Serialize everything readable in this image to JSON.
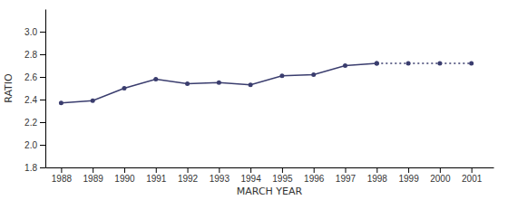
{
  "chart_data": {
    "type": "line",
    "xlabel": "MARCH YEAR",
    "ylabel": "RATIO",
    "series": [
      {
        "x": [
          1988,
          1989,
          1990,
          1991,
          1992,
          1993,
          1994,
          1995,
          1996,
          1997,
          1998
        ],
        "values": [
          2.37,
          2.39,
          2.5,
          2.58,
          2.54,
          2.55,
          2.53,
          2.61,
          2.62,
          2.7,
          2.72
        ],
        "color": "#3a3d6e",
        "line_style": "solid",
        "marker": "circle"
      },
      {
        "x": [
          1998,
          1999,
          2000,
          2001
        ],
        "values": [
          2.72,
          2.72,
          2.72,
          2.72
        ],
        "color": "#3a3d6e",
        "line_style": "dotted",
        "marker": "circle"
      }
    ],
    "xlim": [
      1987.5,
      2001.7
    ],
    "ylim": [
      1.8,
      3.2
    ],
    "xticks": [
      1988,
      1989,
      1990,
      1991,
      1992,
      1993,
      1994,
      1995,
      1996,
      1997,
      1998,
      1999,
      2000,
      2001
    ],
    "yticks": [
      1.8,
      {
        "value": 2.0,
        "label": "2.0"
      },
      2.2,
      2.4,
      2.6,
      2.8,
      {
        "value": 3.0,
        "label": "3.0"
      }
    ],
    "grid": false
  }
}
